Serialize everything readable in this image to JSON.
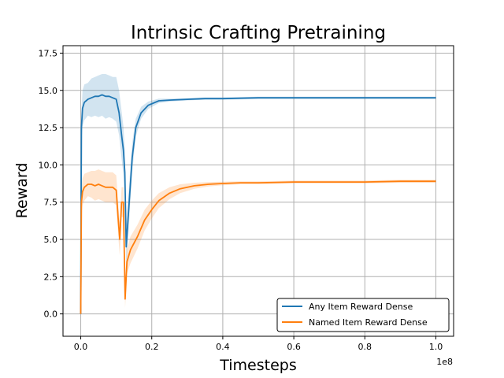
{
  "chart_data": {
    "type": "line",
    "title": "Intrinsic Crafting Pretraining",
    "xlabel": "Timesteps",
    "ylabel": "Reward",
    "x_scale_label": "1e8",
    "xlim": [
      -5000000,
      105000000
    ],
    "ylim": [
      -1.5,
      18.0
    ],
    "x_ticks": [
      0,
      20000000,
      40000000,
      60000000,
      80000000,
      100000000
    ],
    "x_tick_labels": [
      "0.0",
      "0.2",
      "0.4",
      "0.6",
      "0.8",
      "1.0"
    ],
    "y_ticks": [
      0,
      2.5,
      5,
      7.5,
      10,
      12.5,
      15,
      17.5
    ],
    "y_tick_labels": [
      "0.0",
      "2.5",
      "5.0",
      "7.5",
      "10.0",
      "12.5",
      "15.0",
      "17.5"
    ],
    "grid": true,
    "legend_position": "lower-right",
    "series": [
      {
        "name": "Any Item Reward Dense",
        "color": "#1f77b4",
        "x": [
          0,
          200000,
          500000,
          1000000,
          2000000,
          3000000,
          4000000,
          5000000,
          6000000,
          7000000,
          8000000,
          9000000,
          10000000,
          10800000,
          11500000,
          12000000,
          12400000,
          12800000,
          13500000,
          14500000,
          15500000,
          17000000,
          19000000,
          22000000,
          25000000,
          30000000,
          35000000,
          40000000,
          50000000,
          60000000,
          70000000,
          80000000,
          90000000,
          100000000
        ],
        "y": [
          0,
          12.5,
          13.8,
          14.2,
          14.4,
          14.5,
          14.6,
          14.6,
          14.7,
          14.6,
          14.6,
          14.5,
          14.4,
          13.5,
          12.0,
          11.0,
          9.5,
          4.5,
          7.0,
          10.5,
          12.5,
          13.5,
          14.0,
          14.3,
          14.35,
          14.4,
          14.45,
          14.45,
          14.5,
          14.5,
          14.5,
          14.5,
          14.5,
          14.5
        ],
        "band": [
          0,
          1.0,
          1.2,
          1.2,
          1.1,
          1.3,
          1.3,
          1.4,
          1.4,
          1.5,
          1.4,
          1.4,
          1.5,
          1.5,
          1.6,
          1.6,
          1.6,
          1.4,
          1.3,
          1.0,
          0.6,
          0.4,
          0.25,
          0.15,
          0.1,
          0.08,
          0.08,
          0.08,
          0.08,
          0.08,
          0.08,
          0.08,
          0.08,
          0.08
        ]
      },
      {
        "name": "Named Item Reward Dense",
        "color": "#ff7f0e",
        "x": [
          0,
          200000,
          500000,
          1000000,
          2000000,
          3000000,
          4000000,
          5000000,
          6000000,
          7000000,
          8000000,
          9000000,
          10000000,
          10500000,
          11000000,
          11500000,
          12000000,
          12500000,
          13000000,
          14000000,
          16000000,
          18000000,
          20000000,
          22000000,
          25000000,
          28000000,
          32000000,
          36000000,
          40000000,
          45000000,
          50000000,
          60000000,
          70000000,
          80000000,
          90000000,
          100000000
        ],
        "y": [
          0,
          7.5,
          8.2,
          8.5,
          8.7,
          8.7,
          8.6,
          8.7,
          8.6,
          8.5,
          8.5,
          8.5,
          8.3,
          6.5,
          5.0,
          7.5,
          7.5,
          1.0,
          3.5,
          4.3,
          5.2,
          6.3,
          7.0,
          7.6,
          8.1,
          8.4,
          8.6,
          8.7,
          8.75,
          8.8,
          8.8,
          8.85,
          8.85,
          8.85,
          8.9,
          8.9
        ],
        "band": [
          0,
          0.8,
          0.9,
          0.9,
          0.8,
          0.9,
          1.0,
          1.0,
          1.0,
          1.0,
          1.0,
          1.0,
          1.0,
          1.1,
          1.1,
          1.0,
          1.0,
          0.6,
          0.8,
          0.9,
          0.8,
          0.7,
          0.6,
          0.5,
          0.4,
          0.3,
          0.2,
          0.15,
          0.12,
          0.1,
          0.1,
          0.1,
          0.1,
          0.1,
          0.1,
          0.1
        ]
      }
    ]
  }
}
